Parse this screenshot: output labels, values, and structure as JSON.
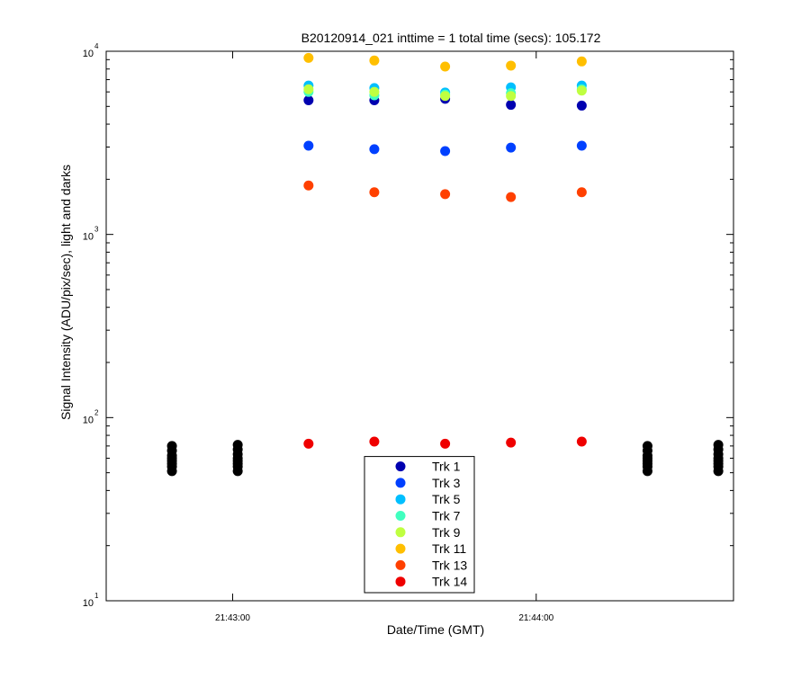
{
  "chart_data": {
    "type": "scatter",
    "title": "B20120914_021 inttime = 1 total time (secs): 105.172",
    "xlabel": "Date/Time (GMT)",
    "ylabel": "Signal Intensity (ADU/pix/sec), light and darks",
    "log_y": true,
    "xlim": [
      "21:42:35",
      "21:44:39"
    ],
    "xticks": [
      "21:43:00",
      "21:44:00"
    ],
    "ylim": [
      10,
      10000
    ],
    "yticks": [
      {
        "value": 10,
        "label": "10",
        "exponent": "1"
      },
      {
        "value": 100,
        "label": "10",
        "exponent": "2"
      },
      {
        "value": 1000,
        "label": "10",
        "exponent": "3"
      },
      {
        "value": 10000,
        "label": "10",
        "exponent": "4"
      }
    ],
    "legend_position": "bottom",
    "x": [
      "21:43:15",
      "21:43:28",
      "21:43:42",
      "21:43:55",
      "21:44:09"
    ],
    "series": [
      {
        "name": "Trk 1",
        "color": "#0000b0",
        "values": [
          5400,
          5400,
          5500,
          5100,
          5050
        ]
      },
      {
        "name": "Trk 3",
        "color": "#0040ff",
        "values": [
          3050,
          2920,
          2850,
          2980,
          3050
        ]
      },
      {
        "name": "Trk 5",
        "color": "#00bfff",
        "values": [
          6500,
          6300,
          5950,
          6350,
          6500
        ]
      },
      {
        "name": "Trk 7",
        "color": "#40ffbf",
        "values": [
          6000,
          5750,
          5800,
          5900,
          6200
        ]
      },
      {
        "name": "Trk 9",
        "color": "#bfff40",
        "values": [
          6200,
          6000,
          5700,
          5700,
          6100
        ]
      },
      {
        "name": "Trk 11",
        "color": "#ffbf00",
        "values": [
          9200,
          8900,
          8250,
          8350,
          8800
        ]
      },
      {
        "name": "Trk 13",
        "color": "#ff4000",
        "values": [
          1850,
          1700,
          1660,
          1600,
          1700
        ]
      },
      {
        "name": "Trk 14",
        "color": "#ef0000",
        "values": [
          72,
          74,
          72,
          73,
          74
        ]
      }
    ],
    "darks": {
      "color": "#000000",
      "x": [
        "21:42:48",
        "21:43:01",
        "21:44:22",
        "21:44:36"
      ],
      "values": [
        [
          51,
          54,
          56,
          58,
          60,
          62,
          66,
          70
        ],
        [
          51,
          54,
          56,
          58,
          60,
          63,
          67,
          71
        ],
        [
          51,
          54,
          56,
          58,
          60,
          62,
          66,
          70
        ],
        [
          51,
          54,
          56,
          58,
          60,
          63,
          67,
          71
        ]
      ]
    }
  }
}
